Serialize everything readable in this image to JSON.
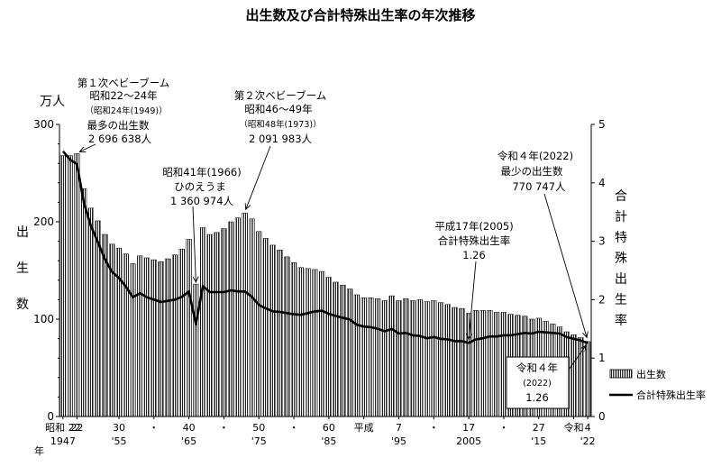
{
  "chart_data": {
    "type": "bar",
    "title": "出生数及び合計特殊出生率の年次推移",
    "y_left": {
      "unit": "万人",
      "label": [
        "出",
        "生",
        "数"
      ],
      "range": [
        0,
        300
      ],
      "ticks": [
        "0",
        "100",
        "200",
        "300"
      ]
    },
    "y_right": {
      "label": [
        "合",
        "計",
        "特",
        "殊",
        "出",
        "生",
        "率"
      ],
      "range": [
        0,
        5
      ],
      "ticks": [
        "0",
        "1",
        "2",
        "3",
        "4",
        "5"
      ]
    },
    "x_years": [
      1947,
      1948,
      1949,
      1950,
      1951,
      1952,
      1953,
      1954,
      1955,
      1956,
      1957,
      1958,
      1959,
      1960,
      1961,
      1962,
      1963,
      1964,
      1965,
      1966,
      1967,
      1968,
      1969,
      1970,
      1971,
      1972,
      1973,
      1974,
      1975,
      1976,
      1977,
      1978,
      1979,
      1980,
      1981,
      1982,
      1983,
      1984,
      1985,
      1986,
      1987,
      1988,
      1989,
      1990,
      1991,
      1992,
      1993,
      1994,
      1995,
      1996,
      1997,
      1998,
      1999,
      2000,
      2001,
      2002,
      2003,
      2004,
      2005,
      2006,
      2007,
      2008,
      2009,
      2010,
      2011,
      2012,
      2013,
      2014,
      2015,
      2016,
      2017,
      2018,
      2019,
      2020,
      2021,
      2022
    ],
    "x_ticks": [
      {
        "year": 1947,
        "top": "昭和 22",
        "bottom": "1947"
      },
      {
        "year": 1949,
        "top": "22",
        "bottom": ""
      },
      {
        "year": 1955,
        "top": "30",
        "bottom": "'55"
      },
      {
        "year": 1960,
        "top": "・",
        "bottom": ""
      },
      {
        "year": 1965,
        "top": "40",
        "bottom": "'65"
      },
      {
        "year": 1970,
        "top": "・",
        "bottom": ""
      },
      {
        "year": 1975,
        "top": "50",
        "bottom": "'75"
      },
      {
        "year": 1980,
        "top": "・",
        "bottom": ""
      },
      {
        "year": 1985,
        "top": "60",
        "bottom": "'85"
      },
      {
        "year": 1990,
        "top": "平成",
        "bottom": ""
      },
      {
        "year": 1995,
        "top": "7",
        "bottom": "'95"
      },
      {
        "year": 2000,
        "top": "・",
        "bottom": ""
      },
      {
        "year": 2005,
        "top": "17",
        "bottom": "2005"
      },
      {
        "year": 2010,
        "top": "・",
        "bottom": ""
      },
      {
        "year": 2015,
        "top": "27",
        "bottom": "'15"
      },
      {
        "year": 2020,
        "top": "令和",
        "bottom": ""
      },
      {
        "year": 2022,
        "top": "4",
        "bottom": "'22"
      }
    ],
    "x_side_label": "年",
    "series": [
      {
        "name": "出生数",
        "type": "bar",
        "axis": "left",
        "unit": "万人",
        "values": [
          268,
          268,
          270,
          234,
          214,
          201,
          187,
          177,
          173,
          167,
          157,
          165,
          163,
          161,
          159,
          162,
          166,
          172,
          182,
          136,
          194,
          187,
          189,
          193,
          200,
          204,
          209,
          203,
          190,
          183,
          176,
          171,
          164,
          158,
          153,
          152,
          151,
          149,
          143,
          138,
          135,
          131,
          125,
          122,
          122,
          121,
          119,
          124,
          119,
          121,
          119,
          120,
          118,
          119,
          117,
          115,
          112,
          111,
          106,
          109,
          109,
          109,
          107,
          107,
          105,
          104,
          103,
          100,
          101,
          98,
          95,
          92,
          87,
          84,
          81,
          77
        ]
      },
      {
        "name": "合計特殊出生率",
        "type": "line",
        "axis": "right",
        "values": [
          4.54,
          4.4,
          4.32,
          3.65,
          3.26,
          2.98,
          2.69,
          2.48,
          2.37,
          2.22,
          2.04,
          2.11,
          2.04,
          2.0,
          1.96,
          1.98,
          2.0,
          2.05,
          2.14,
          1.58,
          2.23,
          2.13,
          2.13,
          2.13,
          2.16,
          2.14,
          2.14,
          2.05,
          1.91,
          1.85,
          1.8,
          1.79,
          1.77,
          1.75,
          1.74,
          1.77,
          1.8,
          1.81,
          1.76,
          1.72,
          1.69,
          1.66,
          1.57,
          1.54,
          1.53,
          1.5,
          1.46,
          1.5,
          1.42,
          1.43,
          1.39,
          1.38,
          1.34,
          1.36,
          1.33,
          1.32,
          1.29,
          1.29,
          1.26,
          1.32,
          1.34,
          1.37,
          1.37,
          1.39,
          1.39,
          1.41,
          1.43,
          1.42,
          1.45,
          1.44,
          1.43,
          1.42,
          1.36,
          1.33,
          1.3,
          1.26
        ]
      }
    ],
    "legend": {
      "placement": "bottom-right",
      "bar": "出生数",
      "line": "合計特殊出生率"
    },
    "annotations": [
      {
        "lines": [
          "第１次ベビーブーム",
          "昭和22～24年",
          "（昭和24年(1949)）",
          "最多の出生数",
          "2 696 638人"
        ]
      },
      {
        "lines": [
          "昭和41年(1966)",
          "ひのえうま",
          "1 360 974人"
        ]
      },
      {
        "lines": [
          "第２次ベビーブーム",
          "昭和46～49年",
          "（昭和48年(1973)）",
          "2 091 983人"
        ]
      },
      {
        "lines": [
          "平成17年(2005)",
          "合計特殊出生率",
          "1.26"
        ]
      },
      {
        "lines": [
          "令和４年(2022)",
          "最少の出生数",
          "770 747人"
        ]
      },
      {
        "lines": [
          "令和４年",
          "(2022)",
          "1.26"
        ]
      }
    ]
  }
}
